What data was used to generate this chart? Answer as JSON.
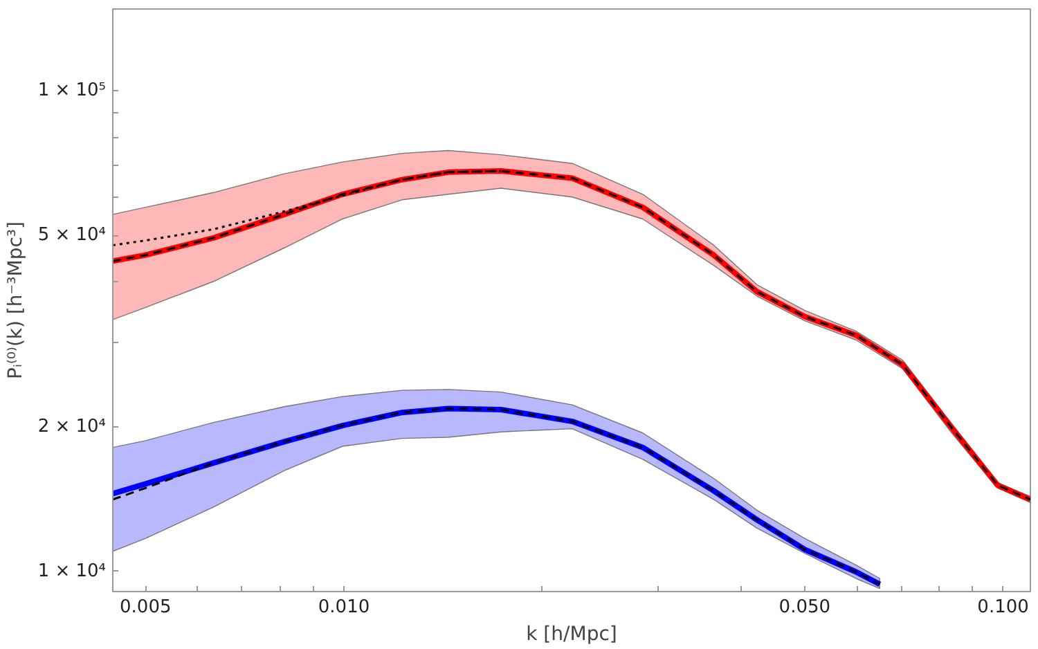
{
  "chart_data": {
    "type": "line",
    "xlabel": "k [h/Mpc]",
    "ylabel": "Pᵢ⁽⁰⁾(k) [h⁻³Mpc³]",
    "log": "xy",
    "grid": false,
    "xlim": [
      0.00446,
      0.11
    ],
    "ylim": [
      9070,
      148000
    ],
    "xticks": [
      0.005,
      {
        "value": 0.006,
        "label": null
      },
      {
        "value": 0.007,
        "label": null
      },
      {
        "value": 0.008,
        "label": null
      },
      {
        "value": 0.009,
        "label": null
      },
      {
        "value": 0.01,
        "label": "0.010"
      },
      {
        "value": 0.02,
        "label": null
      },
      {
        "value": 0.03,
        "label": null
      },
      {
        "value": 0.04,
        "label": null
      },
      {
        "value": 0.05,
        "label": "0.050"
      },
      {
        "value": 0.06,
        "label": null
      },
      {
        "value": 0.07,
        "label": null
      },
      {
        "value": 0.08,
        "label": null
      },
      {
        "value": 0.09,
        "label": null
      },
      {
        "value": 0.1,
        "label": "0.100"
      }
    ],
    "yticks": [
      {
        "value": 10000,
        "label": "1 × 10⁴"
      },
      {
        "value": 20000,
        "label": "2 × 10⁴"
      },
      {
        "value": 30000,
        "label": null
      },
      {
        "value": 40000,
        "label": null
      },
      {
        "value": 50000,
        "label": "5 × 10⁴"
      },
      {
        "value": 60000,
        "label": null
      },
      {
        "value": 70000,
        "label": null
      },
      {
        "value": 80000,
        "label": null
      },
      {
        "value": 90000,
        "label": null
      },
      {
        "value": 100000,
        "label": "1 × 10⁵"
      }
    ],
    "series": [
      {
        "color": "#ff0000",
        "line_style": "solid",
        "x": [
          0.00446,
          0.005,
          0.00634,
          0.00812,
          0.00995,
          0.01225,
          0.0144,
          0.0173,
          0.0222,
          0.0284,
          0.0364,
          0.0423,
          0.05,
          0.0598,
          0.0704,
          0.0833,
          0.0981,
          0.11
        ],
        "values": [
          44200,
          45500,
          49400,
          55300,
          60900,
          65300,
          67700,
          68100,
          65800,
          57200,
          45500,
          38200,
          33900,
          31000,
          26900,
          20000,
          15100,
          14100
        ],
        "upper": [
          55300,
          57200,
          61400,
          67200,
          71100,
          74100,
          75100,
          73600,
          70600,
          60900,
          47700,
          39500,
          34900,
          31600,
          27500,
          20400,
          15300,
          14300
        ],
        "lower": [
          33400,
          35400,
          40100,
          47100,
          54100,
          59300,
          60900,
          62700,
          60100,
          54100,
          43300,
          37400,
          33200,
          30300,
          26400,
          19500,
          14900,
          13900
        ]
      },
      {
        "color": "#0000ff",
        "line_style": "solid",
        "x": [
          0.00446,
          0.005,
          0.00634,
          0.00812,
          0.00995,
          0.01225,
          0.0144,
          0.0173,
          0.0222,
          0.0284,
          0.0364,
          0.0423,
          0.05,
          0.0598,
          0.065
        ],
        "values": [
          14500,
          15200,
          16800,
          18600,
          20100,
          21400,
          21800,
          21700,
          20500,
          18100,
          14700,
          12800,
          11100,
          9970,
          9390
        ],
        "upper": [
          18100,
          18700,
          20400,
          22000,
          23100,
          23800,
          23900,
          23600,
          22200,
          19400,
          15600,
          13400,
          11700,
          10300,
          9660
        ],
        "lower": [
          11000,
          11700,
          13600,
          16200,
          18200,
          18900,
          19000,
          19500,
          19800,
          17100,
          14100,
          12300,
          10900,
          9660,
          9200
        ]
      },
      {
        "color": "#000000",
        "line_style": "dashed",
        "x": [
          0.00446,
          0.005,
          0.00634,
          0.00812,
          0.00995,
          0.01225,
          0.0144,
          0.0173,
          0.0222,
          0.0284,
          0.0364,
          0.0423,
          0.05,
          0.0598,
          0.0704,
          0.0833,
          0.0981,
          0.11
        ],
        "values": [
          44200,
          45500,
          49400,
          55300,
          60900,
          65300,
          67700,
          68100,
          65800,
          57200,
          45500,
          38200,
          33900,
          31000,
          26900,
          20000,
          15100,
          14100
        ]
      },
      {
        "color": "#000000",
        "line_style": "dashed",
        "x": [
          0.00446,
          0.005,
          0.00634,
          0.00812,
          0.00995,
          0.01225,
          0.0144,
          0.0173,
          0.0222,
          0.0284,
          0.0364,
          0.0423,
          0.05,
          0.0598,
          0.065
        ],
        "values": [
          14100,
          14900,
          16800,
          18600,
          20100,
          21400,
          21800,
          21700,
          20500,
          18100,
          14700,
          12800,
          11100,
          9970,
          9390
        ]
      },
      {
        "color": "#000000",
        "line_style": "dotted",
        "x": [
          0.00446,
          0.005,
          0.00634,
          0.00812,
          0.00995,
          0.01225,
          0.0144,
          0.0173
        ],
        "values": [
          47700,
          48800,
          51500,
          56100,
          60500,
          65300,
          67700,
          68100
        ]
      }
    ]
  }
}
